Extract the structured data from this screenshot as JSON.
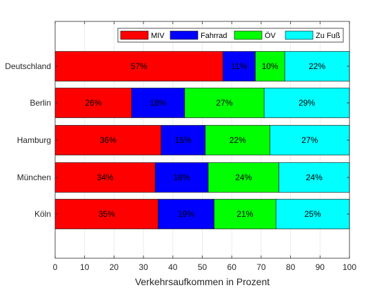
{
  "chart_data": {
    "type": "bar",
    "orientation": "horizontal",
    "stacked": true,
    "categories": [
      "Deutschland",
      "Berlin",
      "Hamburg",
      "München",
      "Köln"
    ],
    "series": [
      {
        "name": "MIV",
        "color": "#ff0000",
        "values": [
          57,
          26,
          36,
          34,
          35
        ]
      },
      {
        "name": "Fahrrad",
        "color": "#0000ff",
        "values": [
          11,
          18,
          15,
          18,
          19
        ]
      },
      {
        "name": "ÖV",
        "color": "#00ff00",
        "values": [
          10,
          27,
          22,
          24,
          21
        ]
      },
      {
        "name": "Zu Fuß",
        "color": "#00ffff",
        "values": [
          22,
          29,
          27,
          24,
          25
        ]
      }
    ],
    "value_suffix": "%",
    "title": "",
    "xlabel": "Verkehrsaufkommen in Prozent",
    "ylabel": "",
    "xlim": [
      0,
      100
    ],
    "xticks": [
      0,
      10,
      20,
      30,
      40,
      50,
      60,
      70,
      80,
      90,
      100
    ],
    "grid": true,
    "legend": "top-right, horizontal"
  }
}
